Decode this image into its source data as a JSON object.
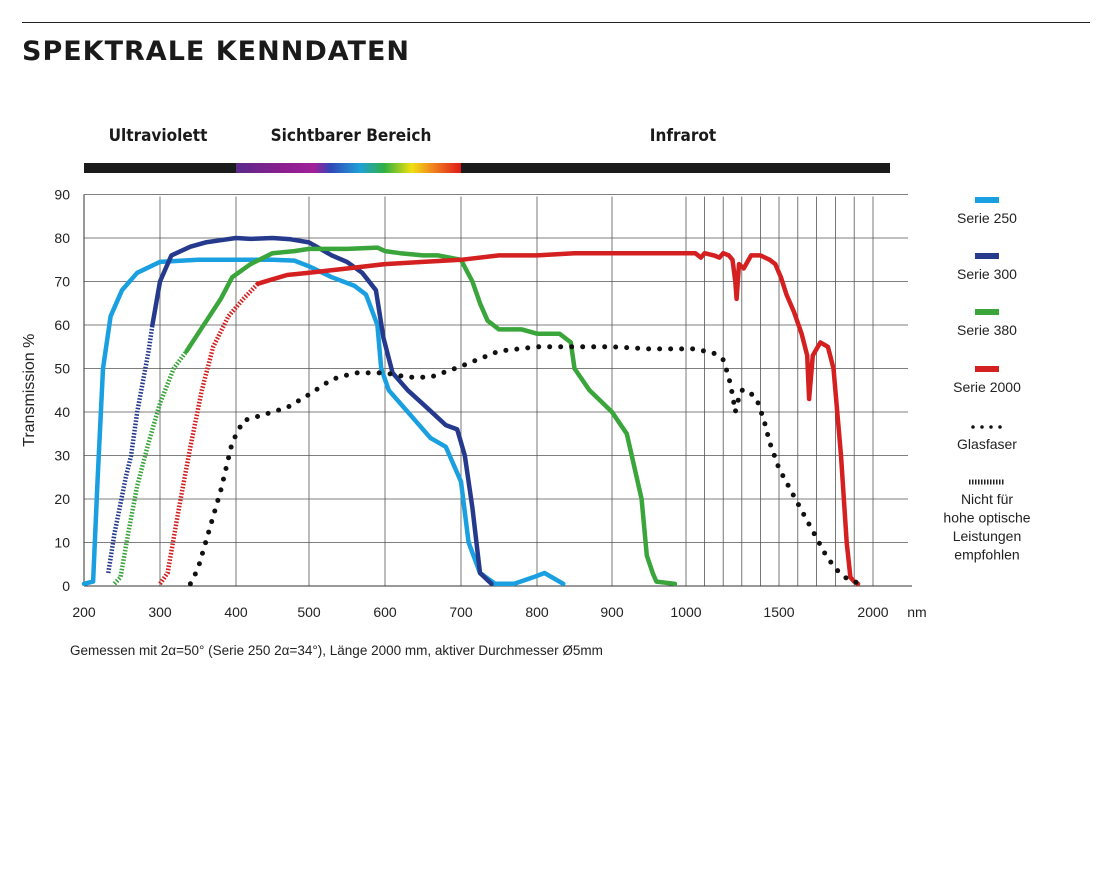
{
  "page": {
    "title": "SPEKTRALE KENNDATEN",
    "footnote": "Gemessen mit 2α=50° (Serie 250 2α=34°), Länge 2000 mm, aktiver Durchmesser Ø5mm"
  },
  "chart_data": {
    "type": "line",
    "xlabel": "",
    "x_unit": "nm",
    "ylabel": "Transmission %",
    "ylim": [
      0,
      90
    ],
    "yticks": [
      0,
      10,
      20,
      30,
      40,
      50,
      60,
      70,
      80,
      90
    ],
    "xticks": [
      200,
      300,
      400,
      500,
      600,
      700,
      800,
      900,
      1000,
      1500,
      2000
    ],
    "x_scale": "nonlinear: 100 nm steps up to 1000 nm, compressed above",
    "grid": true,
    "bands": [
      {
        "label": "Ultraviolett",
        "from": 200,
        "to": 400
      },
      {
        "label": "Sichtbarer Bereich",
        "from": 400,
        "to": 700
      },
      {
        "label": "Infrarot",
        "from": 700,
        "to": 2050
      }
    ],
    "legend_position": "right",
    "legend": [
      {
        "series": "Serie 250",
        "color": "#1aa0e0"
      },
      {
        "series": "Serie 300",
        "color": "#253a8c"
      },
      {
        "series": "Serie 380",
        "color": "#3aa53a"
      },
      {
        "series": "Serie 2000",
        "color": "#d42020"
      },
      {
        "series": "Glasfaser",
        "color": "#111111"
      },
      {
        "series": "Nicht für hohe optische Leistungen empfohlen",
        "color": "#222222"
      }
    ],
    "series": [
      {
        "name": "Serie 250",
        "color": "#1aa0e0",
        "points": [
          [
            200,
            0.5
          ],
          [
            212,
            1
          ],
          [
            218,
            25
          ],
          [
            225,
            50
          ],
          [
            235,
            62
          ],
          [
            250,
            68
          ],
          [
            270,
            72
          ],
          [
            300,
            74.5
          ],
          [
            350,
            75
          ],
          [
            400,
            75
          ],
          [
            450,
            75
          ],
          [
            480,
            74.8
          ],
          [
            500,
            73.5
          ],
          [
            530,
            71
          ],
          [
            560,
            69
          ],
          [
            575,
            67
          ],
          [
            590,
            60
          ],
          [
            595,
            50
          ],
          [
            605,
            45
          ],
          [
            625,
            41
          ],
          [
            640,
            38
          ],
          [
            660,
            34
          ],
          [
            680,
            32
          ],
          [
            700,
            24
          ],
          [
            710,
            10
          ],
          [
            725,
            3
          ],
          [
            745,
            0.5
          ],
          [
            770,
            0.5
          ],
          [
            795,
            2
          ],
          [
            810,
            3
          ],
          [
            835,
            0.5
          ]
        ],
        "not_recommended_to": null
      },
      {
        "name": "Serie 300",
        "color": "#253a8c",
        "points": [
          [
            232,
            3
          ],
          [
            240,
            12
          ],
          [
            255,
            25
          ],
          [
            262,
            30
          ],
          [
            270,
            40
          ],
          [
            285,
            54
          ],
          [
            290,
            60
          ],
          [
            300,
            70
          ],
          [
            315,
            76
          ],
          [
            340,
            78
          ],
          [
            360,
            79
          ],
          [
            380,
            79.5
          ],
          [
            400,
            80
          ],
          [
            420,
            79.8
          ],
          [
            450,
            80
          ],
          [
            475,
            79.7
          ],
          [
            500,
            79
          ],
          [
            510,
            78
          ],
          [
            530,
            76
          ],
          [
            550,
            74.5
          ],
          [
            570,
            72
          ],
          [
            588,
            68
          ],
          [
            598,
            57
          ],
          [
            610,
            49
          ],
          [
            630,
            45
          ],
          [
            655,
            41
          ],
          [
            680,
            37
          ],
          [
            695,
            36
          ],
          [
            705,
            30
          ],
          [
            715,
            18
          ],
          [
            725,
            3
          ],
          [
            740,
            0.5
          ]
        ],
        "not_recommended_to": 290
      },
      {
        "name": "Serie 380",
        "color": "#3aa53a",
        "points": [
          [
            240,
            0.5
          ],
          [
            248,
            2
          ],
          [
            258,
            12
          ],
          [
            270,
            23
          ],
          [
            285,
            33
          ],
          [
            300,
            42
          ],
          [
            318,
            50
          ],
          [
            335,
            54
          ],
          [
            350,
            58
          ],
          [
            365,
            62
          ],
          [
            380,
            66
          ],
          [
            395,
            71
          ],
          [
            420,
            74
          ],
          [
            450,
            76.5
          ],
          [
            480,
            77
          ],
          [
            500,
            77.5
          ],
          [
            550,
            77.5
          ],
          [
            590,
            77.8
          ],
          [
            600,
            77
          ],
          [
            620,
            76.5
          ],
          [
            650,
            76
          ],
          [
            670,
            76
          ],
          [
            700,
            75
          ],
          [
            715,
            70
          ],
          [
            725,
            65
          ],
          [
            735,
            61
          ],
          [
            750,
            59
          ],
          [
            780,
            59
          ],
          [
            800,
            58
          ],
          [
            830,
            58
          ],
          [
            845,
            56
          ],
          [
            850,
            50
          ],
          [
            870,
            45
          ],
          [
            900,
            40
          ],
          [
            920,
            35
          ],
          [
            940,
            20
          ],
          [
            947,
            7
          ],
          [
            955,
            3
          ],
          [
            960,
            1
          ],
          [
            985,
            0.5
          ]
        ],
        "not_recommended_to": 335
      },
      {
        "name": "Serie 2000",
        "color": "#d42020",
        "points": [
          [
            300,
            0.5
          ],
          [
            310,
            3
          ],
          [
            325,
            18
          ],
          [
            340,
            32
          ],
          [
            355,
            45
          ],
          [
            370,
            55
          ],
          [
            390,
            62
          ],
          [
            410,
            66
          ],
          [
            430,
            69.5
          ],
          [
            450,
            70.5
          ],
          [
            470,
            71.5
          ],
          [
            500,
            72
          ],
          [
            550,
            73
          ],
          [
            600,
            74
          ],
          [
            650,
            74.5
          ],
          [
            700,
            75
          ],
          [
            750,
            76
          ],
          [
            800,
            76
          ],
          [
            850,
            76.5
          ],
          [
            900,
            76.5
          ],
          [
            950,
            76.5
          ],
          [
            1000,
            76.5
          ],
          [
            1050,
            76.5
          ],
          [
            1080,
            75.5
          ],
          [
            1100,
            76.5
          ],
          [
            1150,
            76
          ],
          [
            1180,
            75.5
          ],
          [
            1200,
            76.5
          ],
          [
            1230,
            76
          ],
          [
            1250,
            75
          ],
          [
            1265,
            70
          ],
          [
            1272,
            66
          ],
          [
            1285,
            74
          ],
          [
            1310,
            73
          ],
          [
            1350,
            76
          ],
          [
            1400,
            76
          ],
          [
            1450,
            75
          ],
          [
            1480,
            74
          ],
          [
            1510,
            71
          ],
          [
            1540,
            67
          ],
          [
            1580,
            63
          ],
          [
            1620,
            58
          ],
          [
            1650,
            53
          ],
          [
            1660,
            43
          ],
          [
            1680,
            53
          ],
          [
            1720,
            56
          ],
          [
            1760,
            55
          ],
          [
            1790,
            50
          ],
          [
            1830,
            30
          ],
          [
            1860,
            10
          ],
          [
            1880,
            2
          ],
          [
            1900,
            1
          ],
          [
            1920,
            0.5
          ]
        ],
        "not_recommended_to": 430
      },
      {
        "name": "Glasfaser",
        "color": "#111111",
        "style": "dotted",
        "points": [
          [
            340,
            0.5
          ],
          [
            350,
            4
          ],
          [
            365,
            13
          ],
          [
            380,
            22
          ],
          [
            395,
            33
          ],
          [
            410,
            38
          ],
          [
            440,
            39.5
          ],
          [
            470,
            41
          ],
          [
            500,
            44
          ],
          [
            530,
            47.5
          ],
          [
            560,
            49
          ],
          [
            600,
            49
          ],
          [
            630,
            48
          ],
          [
            660,
            48
          ],
          [
            700,
            50.5
          ],
          [
            750,
            54
          ],
          [
            800,
            55
          ],
          [
            850,
            55
          ],
          [
            900,
            55
          ],
          [
            950,
            54.5
          ],
          [
            1000,
            54.5
          ],
          [
            1050,
            54.5
          ],
          [
            1100,
            54
          ],
          [
            1150,
            53.5
          ],
          [
            1200,
            52
          ],
          [
            1230,
            48
          ],
          [
            1250,
            44
          ],
          [
            1265,
            40
          ],
          [
            1275,
            42
          ],
          [
            1300,
            45
          ],
          [
            1330,
            45
          ],
          [
            1380,
            43
          ],
          [
            1420,
            38
          ],
          [
            1450,
            33
          ],
          [
            1500,
            27
          ],
          [
            1550,
            23
          ],
          [
            1600,
            19
          ],
          [
            1650,
            15
          ],
          [
            1700,
            11
          ],
          [
            1750,
            7
          ],
          [
            1800,
            4
          ],
          [
            1850,
            2
          ],
          [
            1900,
            1
          ],
          [
            1930,
            0.5
          ]
        ]
      }
    ]
  }
}
